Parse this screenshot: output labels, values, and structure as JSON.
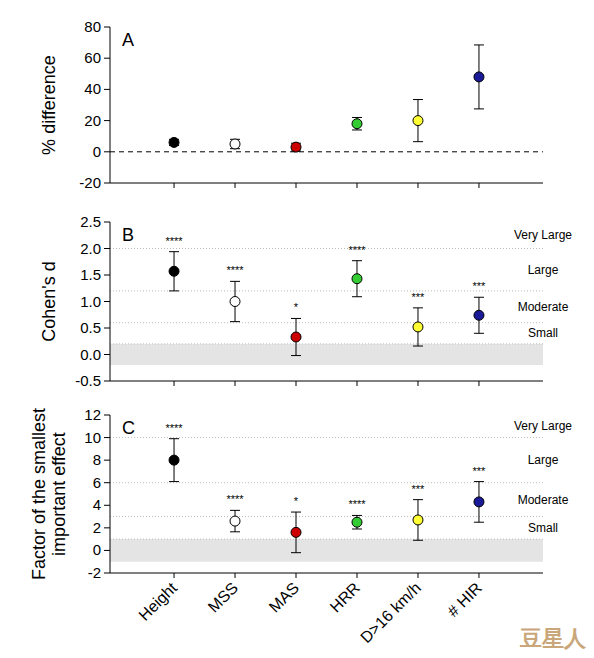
{
  "chart_data": [
    {
      "type": "scatter",
      "title": "A",
      "ylabel": [
        "% difference"
      ],
      "categories": [
        "Height",
        "MSS",
        "MAS",
        "HRR",
        "D>16 km/h",
        "# HIR"
      ],
      "values": [
        6,
        5,
        3,
        18,
        20,
        48
      ],
      "error": [
        2,
        3,
        2.5,
        4,
        13.5,
        20.5
      ],
      "colors": [
        "#000000",
        "#ffffff",
        "#cc0000",
        "#33cc33",
        "#ffff33",
        "#1a1a99"
      ],
      "marker": "circle",
      "ylim": [
        -20,
        80
      ],
      "yticks": [
        -20,
        0,
        20,
        40,
        60,
        80
      ],
      "reference_line": 0,
      "tick_labels": "y"
    },
    {
      "type": "scatter",
      "title": "B",
      "ylabel": [
        "Cohen's d"
      ],
      "categories": [
        "Height",
        "MSS",
        "MAS",
        "HRR",
        "D>16 km/h",
        "# HIR"
      ],
      "values": [
        1.57,
        1.0,
        0.33,
        1.43,
        0.52,
        0.74
      ],
      "error": [
        0.37,
        0.38,
        0.35,
        0.34,
        0.36,
        0.34
      ],
      "significance": [
        "****",
        "****",
        "*",
        "****",
        "***",
        "***"
      ],
      "colors": [
        "#000000",
        "#ffffff",
        "#cc0000",
        "#33cc33",
        "#ffff33",
        "#1a1a99"
      ],
      "marker": "circle",
      "ylim": [
        -0.5,
        2.5
      ],
      "yticks": [
        -0.5,
        {
          "value": 0,
          "label": "0.0"
        },
        0.5,
        {
          "value": 1,
          "label": "1.0"
        },
        1.5,
        {
          "value": 2,
          "label": "2.0"
        },
        2.5
      ],
      "trivial_band": [
        -0.2,
        0.2
      ],
      "effect_size_bands": [
        {
          "label": "Small",
          "from": 0.2,
          "to": 0.6
        },
        {
          "label": "Moderate",
          "from": 0.6,
          "to": 1.2
        },
        {
          "label": "Large",
          "from": 1.2,
          "to": 2.0
        },
        {
          "label": "Very Large",
          "from": 2.0,
          "to": 2.5
        }
      ],
      "tick_labels": "y"
    },
    {
      "type": "scatter",
      "title": "C",
      "ylabel": [
        "Factor of the smallest",
        "important effect"
      ],
      "categories": [
        "Height",
        "MSS",
        "MAS",
        "HRR",
        "D>16 km/h",
        "# HIR"
      ],
      "values": [
        8.0,
        2.6,
        1.6,
        2.5,
        2.7,
        4.3
      ],
      "error": [
        1.9,
        0.95,
        1.8,
        0.6,
        1.8,
        1.8
      ],
      "significance": [
        "****",
        "****",
        "*",
        "****",
        "***",
        "***"
      ],
      "colors": [
        "#000000",
        "#ffffff",
        "#cc0000",
        "#33cc33",
        "#ffff33",
        "#1a1a99"
      ],
      "marker": "circle",
      "ylim": [
        -2,
        12
      ],
      "yticks": [
        -2,
        0,
        2,
        4,
        6,
        8,
        10,
        12
      ],
      "trivial_band": [
        -1,
        1
      ],
      "effect_size_bands": [
        {
          "label": "Small",
          "from": 1,
          "to": 3
        },
        {
          "label": "Moderate",
          "from": 3,
          "to": 6
        },
        {
          "label": "Large",
          "from": 6,
          "to": 10
        },
        {
          "label": "Very Large",
          "from": 10,
          "to": 12
        }
      ],
      "tick_labels": true
    }
  ],
  "watermark": "豆星人"
}
